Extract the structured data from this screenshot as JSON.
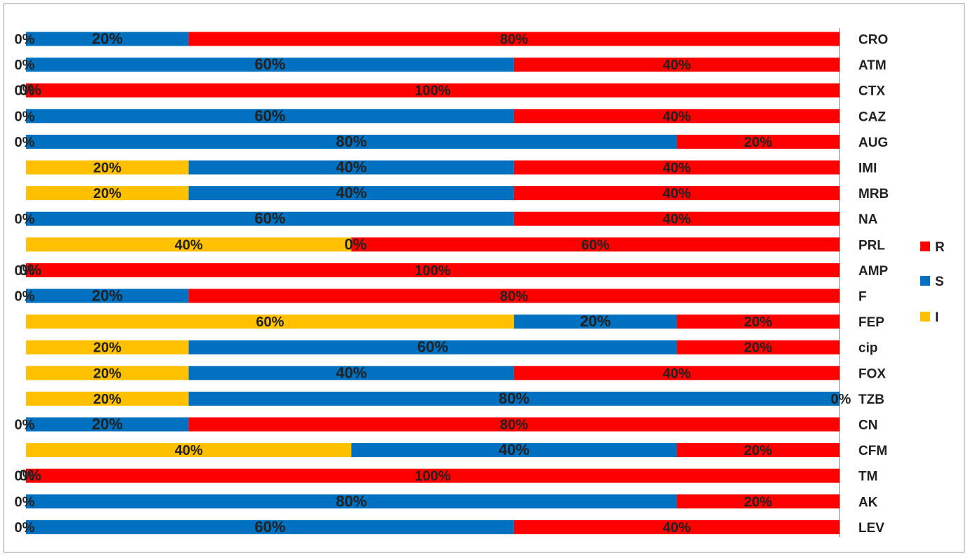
{
  "chart_data": {
    "type": "bar",
    "orientation": "horizontal",
    "stacked": true,
    "normalized": true,
    "categories": [
      "CRO",
      "ATM",
      "CTX",
      "CAZ",
      "AUG",
      "IMI",
      "MRB",
      "NA",
      "PRL",
      "AMP",
      "F",
      "FEP",
      "cip",
      "FOX",
      "TZB",
      "CN",
      "CFM",
      "TM",
      "AK",
      "LEV"
    ],
    "series": [
      {
        "name": "I",
        "color": "#FFC000",
        "values": [
          0,
          0,
          0,
          0,
          0,
          20,
          20,
          0,
          40,
          0,
          0,
          60,
          20,
          20,
          20,
          0,
          40,
          0,
          0,
          0
        ]
      },
      {
        "name": "S",
        "color": "#0070C0",
        "values": [
          20,
          60,
          0,
          60,
          80,
          40,
          40,
          60,
          0,
          0,
          20,
          20,
          60,
          40,
          80,
          20,
          40,
          0,
          80,
          60
        ]
      },
      {
        "name": "R",
        "color": "#FF0000",
        "values": [
          80,
          40,
          100,
          40,
          20,
          40,
          40,
          40,
          60,
          100,
          80,
          20,
          20,
          40,
          0,
          80,
          20,
          100,
          20,
          40
        ]
      }
    ],
    "labels": {
      "I": [
        "0%",
        "0%",
        "0%",
        "0%",
        "0%",
        "20%",
        "20%",
        "0%",
        "40%",
        "0%",
        "0%",
        "60%",
        "20%",
        "20%",
        "20%",
        "0%",
        "40%",
        "0%",
        "0%",
        "0%"
      ],
      "S": [
        "20%",
        "60%",
        "0%",
        "60%",
        "80%",
        "40%",
        "40%",
        "60%",
        "0%",
        "0%",
        "20%",
        "20%",
        "60%",
        "40%",
        "80%",
        "20%",
        "40%",
        "0%",
        "80%",
        "60%"
      ],
      "R": [
        "80%",
        "40%",
        "100%",
        "40%",
        "20%",
        "40%",
        "40%",
        "40%",
        "60%",
        "100%",
        "80%",
        "20%",
        "20%",
        "40%",
        "0%",
        "80%",
        "20%",
        "100%",
        "20%",
        "40%"
      ]
    },
    "xlim": [
      0,
      100
    ],
    "legend": {
      "position": "right",
      "order": [
        "R",
        "S",
        "I"
      ]
    },
    "grid": false
  }
}
